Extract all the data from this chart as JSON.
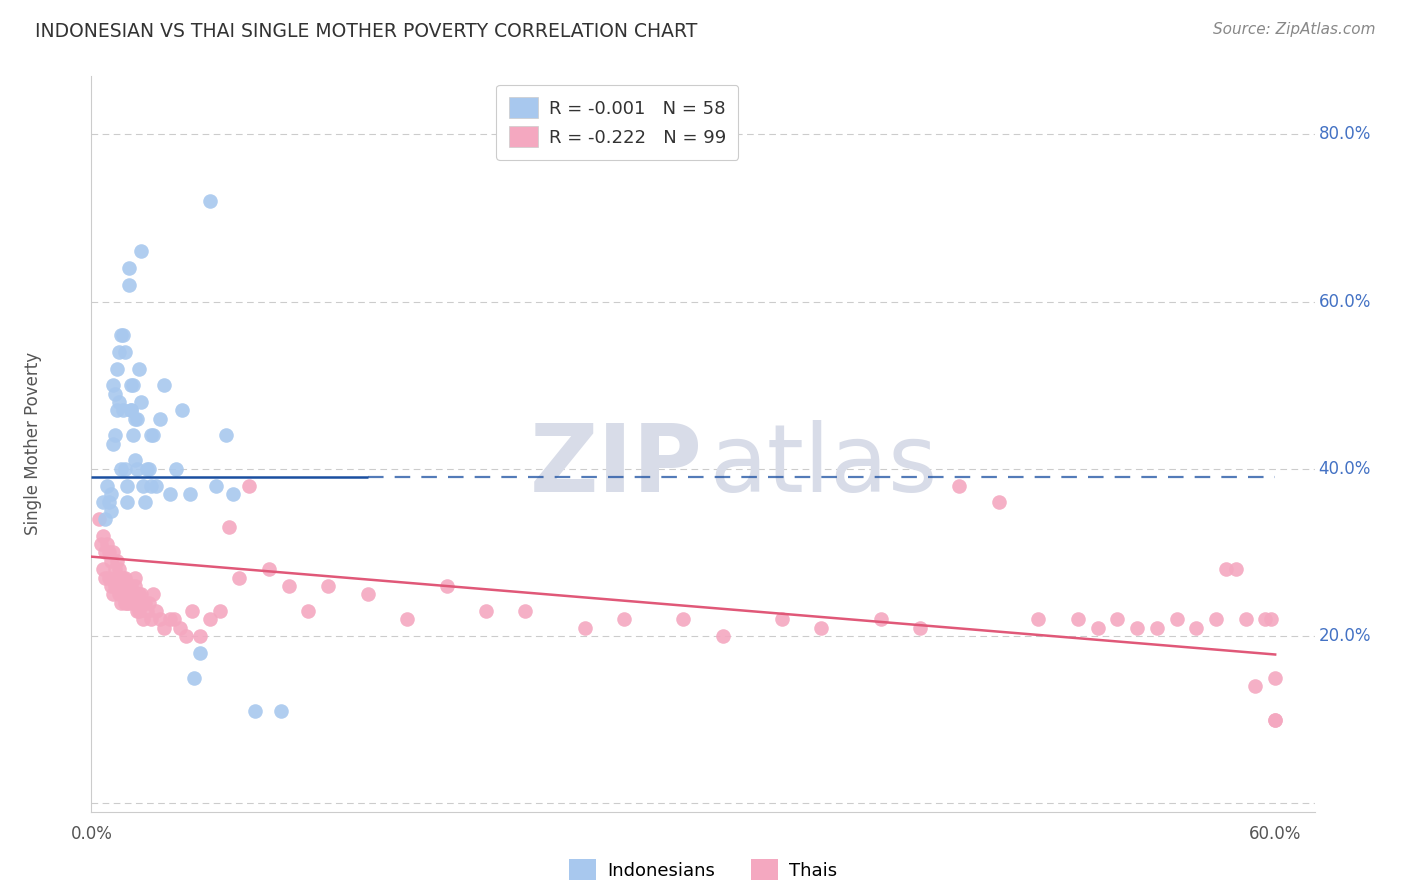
{
  "title": "INDONESIAN VS THAI SINGLE MOTHER POVERTY CORRELATION CHART",
  "source": "Source: ZipAtlas.com",
  "ylabel": "Single Mother Poverty",
  "blue_color": "#a8c8ee",
  "pink_color": "#f4a8c0",
  "line_blue": "#1a4fa0",
  "line_pink": "#e05878",
  "grid_color": "#cccccc",
  "background_color": "#ffffff",
  "right_label_color": "#4472c4",
  "title_color": "#333333",
  "source_color": "#888888",
  "watermark_color": "#d8dce8",
  "xlim": [
    0.0,
    0.62
  ],
  "ylim": [
    -0.01,
    0.87
  ],
  "blue_line_y": 0.39,
  "blue_line_x_solid_end": 0.14,
  "blue_line_x_dashed_end": 0.6,
  "pink_line_x0": 0.0,
  "pink_line_y0": 0.295,
  "pink_line_x1": 0.6,
  "pink_line_y1": 0.178,
  "indonesian_x": [
    0.006,
    0.007,
    0.008,
    0.009,
    0.01,
    0.01,
    0.011,
    0.011,
    0.012,
    0.012,
    0.013,
    0.013,
    0.014,
    0.014,
    0.015,
    0.015,
    0.016,
    0.016,
    0.017,
    0.017,
    0.018,
    0.018,
    0.019,
    0.019,
    0.02,
    0.02,
    0.021,
    0.021,
    0.022,
    0.022,
    0.023,
    0.023,
    0.024,
    0.025,
    0.025,
    0.026,
    0.027,
    0.028,
    0.029,
    0.03,
    0.031,
    0.033,
    0.035,
    0.037,
    0.04,
    0.043,
    0.046,
    0.05,
    0.052,
    0.055,
    0.06,
    0.063,
    0.068,
    0.072,
    0.083,
    0.096,
    0.02,
    0.03
  ],
  "indonesian_y": [
    0.36,
    0.34,
    0.38,
    0.36,
    0.37,
    0.35,
    0.5,
    0.43,
    0.49,
    0.44,
    0.52,
    0.47,
    0.54,
    0.48,
    0.4,
    0.56,
    0.47,
    0.56,
    0.54,
    0.4,
    0.38,
    0.36,
    0.62,
    0.64,
    0.5,
    0.47,
    0.5,
    0.44,
    0.41,
    0.46,
    0.46,
    0.4,
    0.52,
    0.66,
    0.48,
    0.38,
    0.36,
    0.4,
    0.4,
    0.38,
    0.44,
    0.38,
    0.46,
    0.5,
    0.37,
    0.4,
    0.47,
    0.37,
    0.15,
    0.18,
    0.72,
    0.38,
    0.44,
    0.37,
    0.11,
    0.11,
    0.47,
    0.44
  ],
  "thai_x": [
    0.004,
    0.005,
    0.006,
    0.006,
    0.007,
    0.007,
    0.008,
    0.009,
    0.009,
    0.01,
    0.01,
    0.011,
    0.011,
    0.012,
    0.012,
    0.013,
    0.013,
    0.014,
    0.014,
    0.015,
    0.015,
    0.016,
    0.016,
    0.017,
    0.017,
    0.018,
    0.018,
    0.019,
    0.019,
    0.02,
    0.02,
    0.021,
    0.021,
    0.022,
    0.022,
    0.023,
    0.023,
    0.024,
    0.024,
    0.025,
    0.025,
    0.026,
    0.026,
    0.027,
    0.028,
    0.029,
    0.03,
    0.031,
    0.033,
    0.035,
    0.037,
    0.04,
    0.042,
    0.045,
    0.048,
    0.051,
    0.055,
    0.06,
    0.065,
    0.07,
    0.075,
    0.08,
    0.09,
    0.1,
    0.11,
    0.12,
    0.14,
    0.16,
    0.18,
    0.2,
    0.22,
    0.25,
    0.27,
    0.3,
    0.32,
    0.35,
    0.37,
    0.4,
    0.42,
    0.44,
    0.46,
    0.48,
    0.5,
    0.51,
    0.52,
    0.53,
    0.54,
    0.55,
    0.56,
    0.57,
    0.575,
    0.58,
    0.585,
    0.59,
    0.595,
    0.598,
    0.6,
    0.6,
    0.6
  ],
  "thai_y": [
    0.34,
    0.31,
    0.32,
    0.28,
    0.3,
    0.27,
    0.31,
    0.3,
    0.27,
    0.29,
    0.26,
    0.3,
    0.25,
    0.28,
    0.26,
    0.29,
    0.27,
    0.28,
    0.25,
    0.26,
    0.24,
    0.27,
    0.25,
    0.27,
    0.24,
    0.26,
    0.24,
    0.26,
    0.24,
    0.26,
    0.25,
    0.25,
    0.24,
    0.27,
    0.26,
    0.25,
    0.23,
    0.25,
    0.23,
    0.25,
    0.24,
    0.24,
    0.22,
    0.24,
    0.23,
    0.24,
    0.22,
    0.25,
    0.23,
    0.22,
    0.21,
    0.22,
    0.22,
    0.21,
    0.2,
    0.23,
    0.2,
    0.22,
    0.23,
    0.33,
    0.27,
    0.38,
    0.28,
    0.26,
    0.23,
    0.26,
    0.25,
    0.22,
    0.26,
    0.23,
    0.23,
    0.21,
    0.22,
    0.22,
    0.2,
    0.22,
    0.21,
    0.22,
    0.21,
    0.38,
    0.36,
    0.22,
    0.22,
    0.21,
    0.22,
    0.21,
    0.21,
    0.22,
    0.21,
    0.22,
    0.28,
    0.28,
    0.22,
    0.14,
    0.22,
    0.22,
    0.1,
    0.15,
    0.1
  ]
}
